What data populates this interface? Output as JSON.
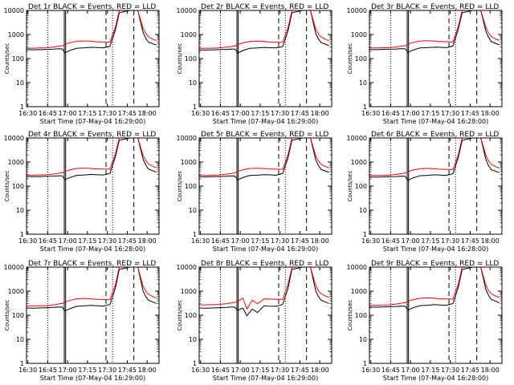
{
  "figure": {
    "xticks": [
      "16:30",
      "16:45",
      "17:00",
      "17:15",
      "17:30",
      "17:45",
      "18:00"
    ],
    "yticks": [
      "1",
      "10",
      "100",
      "1000",
      "10000"
    ],
    "ylabel": "Counts/sec",
    "colors": {
      "events": "#000000",
      "lld": "#ff0000",
      "axis": "#000000"
    }
  },
  "chart_data": [
    {
      "type": "line",
      "title": "Det 1r BLACK = Events, RED = LLD",
      "xlabel": "Start Time (07-May-04 16:29:00)",
      "ylabel": "Counts/sec",
      "x_unit": "minutes after 16:29:00",
      "xlim": [
        0,
        100
      ],
      "ylim": [
        1,
        10000
      ],
      "y_scale": "log",
      "grid": false,
      "x": [
        0,
        5,
        10,
        15,
        20,
        25,
        27,
        29,
        33,
        38,
        44,
        49,
        52,
        58,
        63,
        67,
        70,
        78,
        84,
        88,
        90,
        92,
        95,
        98
      ],
      "series": [
        {
          "name": "Events",
          "values": [
            240,
            230,
            235,
            240,
            245,
            255,
            250,
            175,
            220,
            270,
            280,
            295,
            290,
            280,
            320,
            1500,
            8000,
            10000,
            10000,
            1200,
            700,
            480,
            420,
            360
          ]
        },
        {
          "name": "LLD",
          "values": [
            270,
            270,
            275,
            280,
            300,
            330,
            340,
            390,
            460,
            520,
            540,
            520,
            500,
            490,
            480,
            2000,
            10000,
            10000,
            10000,
            1800,
            1100,
            800,
            650,
            560
          ]
        }
      ],
      "vlines_dotted": [
        16,
        65
      ],
      "vlines_solid": [
        28.5,
        29.5
      ],
      "vlines_dashed": [
        60,
        81
      ]
    },
    {
      "type": "line",
      "title": "Det 2r BLACK = Events, RED = LLD",
      "xlabel": "Start Time (07-May-04 16:29:00)",
      "ylabel": "Counts/sec",
      "x_unit": "minutes after 16:29:00",
      "xlim": [
        0,
        100
      ],
      "ylim": [
        1,
        10000
      ],
      "y_scale": "log",
      "grid": false,
      "x": [
        0,
        5,
        10,
        15,
        20,
        25,
        27,
        29,
        33,
        38,
        44,
        49,
        52,
        58,
        63,
        67,
        70,
        78,
        84,
        88,
        90,
        92,
        95,
        98
      ],
      "series": [
        {
          "name": "Events",
          "values": [
            230,
            225,
            230,
            235,
            240,
            250,
            245,
            170,
            215,
            265,
            275,
            290,
            285,
            275,
            315,
            1400,
            8000,
            10000,
            10000,
            1100,
            650,
            460,
            400,
            340
          ]
        },
        {
          "name": "LLD",
          "values": [
            265,
            265,
            270,
            275,
            295,
            320,
            330,
            380,
            450,
            510,
            530,
            510,
            490,
            480,
            470,
            1900,
            10000,
            10000,
            10000,
            1700,
            1050,
            780,
            640,
            550
          ]
        }
      ],
      "vlines_dotted": [
        16,
        65
      ],
      "vlines_solid": [
        28.5,
        29.5
      ],
      "vlines_dashed": [
        60,
        81
      ]
    },
    {
      "type": "line",
      "title": "Det 3r BLACK = Events, RED = LLD",
      "xlabel": "Start Time (07-May-04 16:28:00)",
      "ylabel": "Counts/sec",
      "x_unit": "minutes after 16:28:00",
      "xlim": [
        0,
        100
      ],
      "ylim": [
        1,
        10000
      ],
      "y_scale": "log",
      "grid": false,
      "x": [
        0,
        5,
        10,
        15,
        20,
        25,
        27,
        29,
        33,
        38,
        44,
        49,
        52,
        58,
        63,
        67,
        70,
        78,
        84,
        88,
        90,
        92,
        95,
        98
      ],
      "series": [
        {
          "name": "Events",
          "values": [
            240,
            235,
            240,
            245,
            250,
            260,
            255,
            180,
            225,
            275,
            285,
            300,
            295,
            285,
            330,
            1600,
            8000,
            10000,
            10000,
            1300,
            750,
            500,
            430,
            370
          ]
        },
        {
          "name": "LLD",
          "values": [
            275,
            275,
            280,
            285,
            305,
            335,
            345,
            395,
            470,
            530,
            550,
            530,
            510,
            500,
            490,
            2100,
            10000,
            10000,
            10000,
            1900,
            1150,
            820,
            660,
            570
          ]
        }
      ],
      "vlines_dotted": [
        16,
        65
      ],
      "vlines_solid": [
        28.5,
        29.5
      ],
      "vlines_dashed": [
        60,
        81
      ]
    },
    {
      "type": "line",
      "title": "Det 4r BLACK = Events, RED = LLD",
      "xlabel": "Start Time (07-May-04 16:28:00)",
      "ylabel": "Counts/sec",
      "x_unit": "minutes after 16:28:00",
      "xlim": [
        0,
        100
      ],
      "ylim": [
        1,
        10000
      ],
      "y_scale": "log",
      "grid": false,
      "x": [
        0,
        5,
        10,
        15,
        20,
        25,
        27,
        29,
        33,
        38,
        44,
        49,
        52,
        58,
        63,
        67,
        70,
        78,
        84,
        88,
        90,
        92,
        95,
        98
      ],
      "series": [
        {
          "name": "Events",
          "values": [
            250,
            245,
            250,
            255,
            260,
            270,
            265,
            185,
            230,
            280,
            290,
            305,
            300,
            290,
            335,
            1600,
            8000,
            10000,
            10000,
            1300,
            760,
            510,
            440,
            380
          ]
        },
        {
          "name": "LLD",
          "values": [
            285,
            285,
            290,
            295,
            315,
            345,
            355,
            405,
            480,
            540,
            560,
            540,
            520,
            510,
            500,
            2100,
            10000,
            10000,
            10000,
            1900,
            1150,
            830,
            670,
            580
          ]
        }
      ],
      "vlines_dotted": [
        16,
        65
      ],
      "vlines_solid": [
        28.5,
        29.5
      ],
      "vlines_dashed": [
        60,
        81
      ]
    },
    {
      "type": "line",
      "title": "Det 5r BLACK = Events, RED = LLD",
      "xlabel": "Start Time (07-May-04 16:29:00)",
      "ylabel": "Counts/sec",
      "x_unit": "minutes after 16:29:00",
      "xlim": [
        0,
        100
      ],
      "ylim": [
        1,
        10000
      ],
      "y_scale": "log",
      "grid": false,
      "x": [
        0,
        5,
        10,
        15,
        20,
        25,
        27,
        29,
        33,
        38,
        44,
        49,
        52,
        58,
        63,
        67,
        70,
        78,
        84,
        88,
        90,
        92,
        95,
        98
      ],
      "series": [
        {
          "name": "Events",
          "values": [
            245,
            240,
            245,
            250,
            255,
            265,
            260,
            180,
            225,
            275,
            285,
            300,
            295,
            285,
            330,
            1500,
            8000,
            10000,
            10000,
            1200,
            720,
            490,
            430,
            370
          ]
        },
        {
          "name": "LLD",
          "values": [
            280,
            280,
            285,
            290,
            310,
            340,
            350,
            400,
            475,
            535,
            555,
            535,
            515,
            505,
            495,
            2000,
            10000,
            10000,
            10000,
            1800,
            1100,
            810,
            660,
            570
          ]
        }
      ],
      "vlines_dotted": [
        16,
        65
      ],
      "vlines_solid": [
        28.5,
        29.5
      ],
      "vlines_dashed": [
        60,
        81
      ]
    },
    {
      "type": "line",
      "title": "Det 6r BLACK = Events, RED = LLD",
      "xlabel": "Start Time (07-May-04 16:28:00)",
      "ylabel": "Counts/sec",
      "x_unit": "minutes after 16:28:00",
      "xlim": [
        0,
        100
      ],
      "ylim": [
        1,
        10000
      ],
      "y_scale": "log",
      "grid": false,
      "x": [
        0,
        5,
        10,
        15,
        20,
        25,
        27,
        29,
        33,
        38,
        44,
        49,
        52,
        58,
        63,
        67,
        70,
        78,
        84,
        88,
        90,
        92,
        95,
        98
      ],
      "series": [
        {
          "name": "Events",
          "values": [
            240,
            235,
            240,
            245,
            250,
            260,
            255,
            175,
            220,
            270,
            280,
            295,
            290,
            280,
            325,
            1500,
            8000,
            10000,
            10000,
            1200,
            700,
            480,
            420,
            360
          ]
        },
        {
          "name": "LLD",
          "values": [
            275,
            275,
            280,
            285,
            305,
            335,
            345,
            395,
            465,
            525,
            545,
            525,
            505,
            495,
            485,
            2000,
            10000,
            10000,
            10000,
            1800,
            1100,
            800,
            650,
            560
          ]
        }
      ],
      "vlines_dotted": [
        16,
        65
      ],
      "vlines_solid": [
        28.5,
        29.5
      ],
      "vlines_dashed": [
        60,
        81
      ]
    },
    {
      "type": "line",
      "title": "Det 7r BLACK = Events, RED = LLD",
      "xlabel": "Start Time (07-May-04 16:29:00)",
      "ylabel": "Counts/sec",
      "x_unit": "minutes after 16:29:00",
      "xlim": [
        0,
        100
      ],
      "ylim": [
        1,
        10000
      ],
      "y_scale": "log",
      "grid": false,
      "x": [
        0,
        5,
        10,
        15,
        20,
        25,
        27,
        29,
        33,
        38,
        44,
        49,
        52,
        58,
        63,
        67,
        70,
        78,
        84,
        88,
        90,
        92,
        95,
        98
      ],
      "series": [
        {
          "name": "Events",
          "values": [
            200,
            195,
            200,
            205,
            210,
            220,
            215,
            150,
            190,
            235,
            245,
            255,
            250,
            240,
            280,
            1300,
            8000,
            10000,
            10000,
            1000,
            600,
            420,
            360,
            310
          ]
        },
        {
          "name": "LLD",
          "values": [
            240,
            240,
            245,
            250,
            270,
            300,
            310,
            350,
            420,
            480,
            500,
            480,
            460,
            450,
            440,
            1800,
            10000,
            10000,
            10000,
            1600,
            1000,
            740,
            600,
            520
          ]
        }
      ],
      "vlines_dotted": [
        16,
        65
      ],
      "vlines_solid": [
        28.5,
        29.5
      ],
      "vlines_dashed": [
        60,
        81
      ]
    },
    {
      "type": "line",
      "title": "Det 8r BLACK = Events, RED = LLD",
      "xlabel": "Start Time (07-May-04 16:29:00)",
      "ylabel": "Counts/sec",
      "x_unit": "minutes after 16:29:00",
      "xlim": [
        0,
        100
      ],
      "ylim": [
        1,
        10000
      ],
      "y_scale": "log",
      "grid": false,
      "x": [
        0,
        5,
        10,
        15,
        20,
        25,
        27,
        29,
        33,
        36,
        40,
        44,
        49,
        52,
        58,
        63,
        67,
        70,
        78,
        84,
        88,
        90,
        92,
        95,
        98
      ],
      "series": [
        {
          "name": "Events",
          "values": [
            200,
            195,
            200,
            205,
            210,
            220,
            215,
            160,
            200,
            95,
            180,
            130,
            250,
            240,
            235,
            280,
            1300,
            8000,
            10000,
            10000,
            1000,
            600,
            420,
            360,
            310
          ]
        },
        {
          "name": "LLD",
          "values": [
            270,
            270,
            275,
            280,
            300,
            330,
            340,
            380,
            520,
            180,
            420,
            300,
            480,
            470,
            460,
            450,
            1900,
            10000,
            10000,
            10000,
            1700,
            1050,
            780,
            640,
            550
          ]
        }
      ],
      "vlines_dotted": [
        16,
        65
      ],
      "vlines_solid": [
        28.5,
        29.5
      ],
      "vlines_dashed": [
        60,
        81
      ]
    },
    {
      "type": "line",
      "title": "Det 9r BLACK = Events, RED = LLD",
      "xlabel": "Start Time (07-May-04 16:28:00)",
      "ylabel": "Counts/sec",
      "x_unit": "minutes after 16:28:00",
      "xlim": [
        0,
        100
      ],
      "ylim": [
        1,
        10000
      ],
      "y_scale": "log",
      "grid": false,
      "x": [
        0,
        5,
        10,
        15,
        20,
        25,
        27,
        29,
        33,
        38,
        44,
        49,
        52,
        58,
        63,
        67,
        70,
        78,
        84,
        88,
        90,
        92,
        95,
        98
      ],
      "series": [
        {
          "name": "Events",
          "values": [
            220,
            215,
            220,
            225,
            230,
            240,
            235,
            165,
            205,
            250,
            260,
            275,
            270,
            260,
            305,
            1400,
            8000,
            10000,
            10000,
            1100,
            650,
            450,
            390,
            330
          ]
        },
        {
          "name": "LLD",
          "values": [
            260,
            260,
            265,
            270,
            290,
            320,
            330,
            375,
            445,
            505,
            525,
            505,
            485,
            475,
            465,
            1900,
            10000,
            10000,
            10000,
            1700,
            1050,
            770,
            630,
            540
          ]
        }
      ],
      "vlines_dotted": [
        16,
        65
      ],
      "vlines_solid": [
        28.5,
        29.5
      ],
      "vlines_dashed": [
        60,
        81
      ]
    }
  ]
}
